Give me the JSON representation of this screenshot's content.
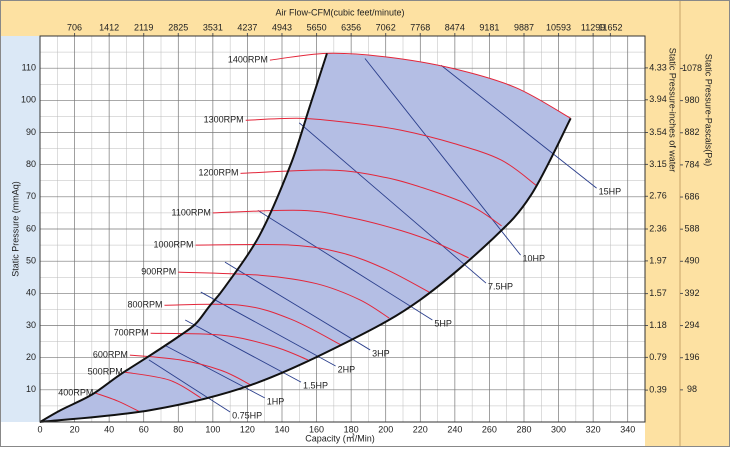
{
  "chart_data": {
    "type": "line",
    "title": "Air Flow-CFM(cubic feet/minute)",
    "x_label": "Capacity (㎥/Min)",
    "y_label": "Static Pressure (mmAq)",
    "y2_label": "Static Pressure-inches of water",
    "y3_label": "Static Pressure-Pascals(Pa)",
    "xlim": [
      0,
      350
    ],
    "xticks": [
      0,
      20,
      40,
      60,
      80,
      100,
      120,
      140,
      160,
      180,
      200,
      220,
      240,
      260,
      280,
      300,
      320,
      340
    ],
    "xminorticks": [
      10,
      30,
      50,
      70,
      90,
      110,
      130,
      150,
      170,
      190,
      210,
      230,
      250,
      270,
      290,
      310,
      330
    ],
    "ylim": [
      0,
      120
    ],
    "yticks": [
      10,
      20,
      30,
      40,
      50,
      60,
      70,
      80,
      90,
      100,
      110
    ],
    "yminorticks": [
      5,
      15,
      25,
      35,
      45,
      55,
      65,
      75,
      85,
      95,
      105,
      115
    ],
    "x2lim": [
      0,
      12359
    ],
    "x2ticks": [
      706,
      1412,
      2119,
      2825,
      3531,
      4237,
      4943,
      5650,
      6356,
      7062,
      7768,
      8474,
      9181,
      9887,
      10593,
      11299,
      11652
    ],
    "y2lim": [
      0,
      4.72
    ],
    "y2ticks": [
      0.39,
      0.79,
      1.18,
      1.57,
      1.97,
      2.36,
      2.76,
      3.15,
      3.54,
      3.94,
      4.33
    ],
    "y3lim": [
      0,
      1177
    ],
    "y3ticks": [
      98,
      196,
      294,
      392,
      490,
      588,
      686,
      784,
      882,
      980,
      1078
    ],
    "grid": true,
    "envelope": {
      "color": "#111111",
      "fill": "#b4bee4",
      "left": {
        "x": [
          0,
          12,
          30,
          46,
          64,
          80,
          90,
          98,
          107,
          127,
          145,
          156,
          166
        ],
        "y": [
          0,
          3.7,
          8.5,
          14.6,
          20.8,
          26.5,
          30.5,
          36,
          42,
          58,
          80,
          98,
          114.6
        ]
      },
      "right": {
        "x": [
          0,
          64,
          122,
          180,
          220,
          261,
          284,
          307
        ],
        "y": [
          0,
          3.7,
          11.5,
          25.5,
          38,
          56.5,
          70.5,
          94.4
        ]
      }
    },
    "rpm_color": "#e3263a",
    "rpm_curves": [
      {
        "name": "1400RPM",
        "x": [
          133,
          166,
          200,
          238,
          275,
          307
        ],
        "y": [
          112.5,
          114.6,
          113.5,
          110,
          104,
          94.4
        ]
      },
      {
        "name": "1300RPM",
        "x": [
          119,
          151,
          180,
          209,
          240,
          267,
          287
        ],
        "y": [
          93.8,
          94.4,
          93,
          90.7,
          86.5,
          81.4,
          73.6
        ]
      },
      {
        "name": "1200RPM",
        "x": [
          116,
          168,
          200,
          226,
          250,
          267
        ],
        "y": [
          77.3,
          78.3,
          76,
          72,
          67,
          61
        ]
      },
      {
        "name": "1100RPM",
        "x": [
          100,
          151,
          180,
          209,
          230,
          248
        ],
        "y": [
          65,
          65.8,
          63.5,
          59.5,
          55.5,
          51
        ]
      },
      {
        "name": "1000RPM",
        "x": [
          90,
          145,
          175,
          200,
          225
        ],
        "y": [
          55,
          55,
          52.5,
          47.5,
          40.4
        ]
      },
      {
        "name": "900RPM",
        "x": [
          80,
          128,
          160,
          185,
          202
        ],
        "y": [
          46.6,
          45.6,
          43,
          38,
          32.3
        ]
      },
      {
        "name": "800RPM",
        "x": [
          72,
          116,
          145,
          174
        ],
        "y": [
          36.3,
          36.3,
          32,
          24
        ]
      },
      {
        "name": "700RPM",
        "x": [
          64,
          105,
          135,
          155
        ],
        "y": [
          27.6,
          27,
          23.5,
          19.3
        ]
      },
      {
        "name": "600RPM",
        "x": [
          52,
          81,
          105,
          122
        ],
        "y": [
          20.8,
          19.3,
          16,
          11.5
        ]
      },
      {
        "name": "500RPM",
        "x": [
          49,
          75,
          93
        ],
        "y": [
          15.5,
          13,
          7.5
        ]
      },
      {
        "name": "400RPM",
        "x": [
          32,
          45,
          58
        ],
        "y": [
          9,
          6.5,
          3.1
        ]
      }
    ],
    "hp_color": "#2b3f8c",
    "hp_curves": [
      {
        "name": "15HP",
        "x": [
          232,
          322
        ],
        "y": [
          110.9,
          72.7
        ]
      },
      {
        "name": "10HP",
        "x": [
          188,
          278
        ],
        "y": [
          113,
          51.9
        ]
      },
      {
        "name": "7.5HP",
        "x": [
          150,
          258
        ],
        "y": [
          93,
          43.2
        ]
      },
      {
        "name": "5HP",
        "x": [
          126,
          227
        ],
        "y": [
          65.8,
          31.7
        ]
      },
      {
        "name": "3HP",
        "x": [
          107,
          191
        ],
        "y": [
          49.7,
          22.4
        ]
      },
      {
        "name": "2HP",
        "x": [
          93,
          171
        ],
        "y": [
          40.4,
          17.4
        ]
      },
      {
        "name": "1.5HP",
        "x": [
          84,
          151
        ],
        "y": [
          31.7,
          12.4
        ]
      },
      {
        "name": "1HP",
        "x": [
          72,
          130
        ],
        "y": [
          23.9,
          7.5
        ]
      },
      {
        "name": "0.75HP",
        "x": [
          63,
          110
        ],
        "y": [
          19.3,
          3.1
        ]
      }
    ]
  }
}
